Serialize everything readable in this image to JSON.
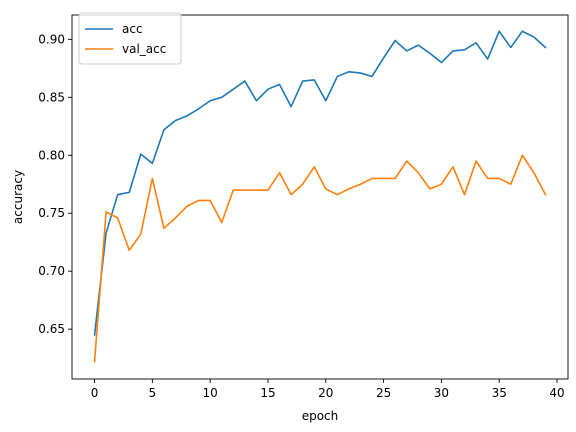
{
  "chart_data": {
    "type": "line",
    "title": "",
    "xlabel": "epoch",
    "ylabel": "accuracy",
    "xlim": [
      -1.95,
      40.95
    ],
    "ylim": [
      0.607,
      0.921
    ],
    "xticks": [
      0,
      5,
      10,
      15,
      20,
      25,
      30,
      35,
      40
    ],
    "xtick_labels": [
      "0",
      "5",
      "10",
      "15",
      "20",
      "25",
      "30",
      "35",
      "40"
    ],
    "yticks": [
      0.65,
      0.7,
      0.75,
      0.8,
      0.85,
      0.9
    ],
    "ytick_labels": [
      "0.65",
      "0.70",
      "0.75",
      "0.80",
      "0.85",
      "0.90"
    ],
    "grid": false,
    "legend_position": "top-left",
    "x": [
      0,
      1,
      2,
      3,
      4,
      5,
      6,
      7,
      8,
      9,
      10,
      11,
      12,
      13,
      14,
      15,
      16,
      17,
      18,
      19,
      20,
      21,
      22,
      23,
      24,
      25,
      26,
      27,
      28,
      29,
      30,
      31,
      32,
      33,
      34,
      35,
      36,
      37,
      38,
      39
    ],
    "series": [
      {
        "name": "acc",
        "color": "#1f77b4",
        "values": [
          0.645,
          0.733,
          0.766,
          0.768,
          0.801,
          0.793,
          0.822,
          0.83,
          0.834,
          0.84,
          0.847,
          0.85,
          0.857,
          0.864,
          0.847,
          0.857,
          0.861,
          0.842,
          0.864,
          0.865,
          0.847,
          0.868,
          0.872,
          0.871,
          0.868,
          0.884,
          0.899,
          0.89,
          0.895,
          0.888,
          0.88,
          0.89,
          0.891,
          0.897,
          0.883,
          0.907,
          0.893,
          0.907,
          0.902,
          0.893
        ]
      },
      {
        "name": "val_acc",
        "color": "#ff7f0e",
        "values": [
          0.622,
          0.751,
          0.746,
          0.718,
          0.732,
          0.78,
          0.737,
          0.746,
          0.756,
          0.761,
          0.761,
          0.742,
          0.77,
          0.77,
          0.77,
          0.77,
          0.785,
          0.766,
          0.775,
          0.79,
          0.771,
          0.766,
          0.771,
          0.775,
          0.78,
          0.78,
          0.78,
          0.795,
          0.785,
          0.771,
          0.775,
          0.79,
          0.766,
          0.795,
          0.78,
          0.78,
          0.775,
          0.8,
          0.785,
          0.766
        ]
      }
    ]
  }
}
